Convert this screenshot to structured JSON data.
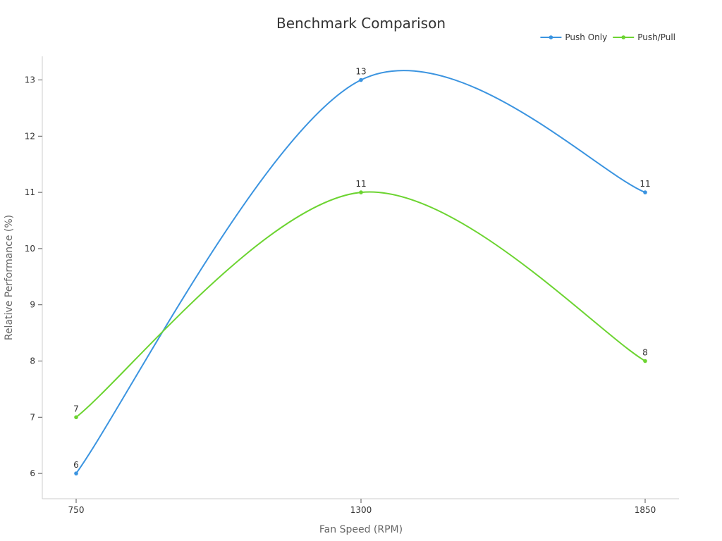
{
  "chart_data": {
    "type": "line",
    "title": "Benchmark Comparison",
    "xlabel": "Fan Speed (RPM)",
    "ylabel": "Relative Performance (%)",
    "categories": [
      "750",
      "1300",
      "1850"
    ],
    "ylim": [
      5.55,
      13.42
    ],
    "yticks": [
      6,
      7,
      8,
      9,
      10,
      11,
      12,
      13
    ],
    "grid": false,
    "legend_position": "top-right",
    "series": [
      {
        "name": "Push Only",
        "values": [
          6,
          13,
          11
        ],
        "color": "#3b94e0"
      },
      {
        "name": "Push/Pull",
        "values": [
          7,
          11,
          8
        ],
        "color": "#6cd431"
      }
    ]
  }
}
